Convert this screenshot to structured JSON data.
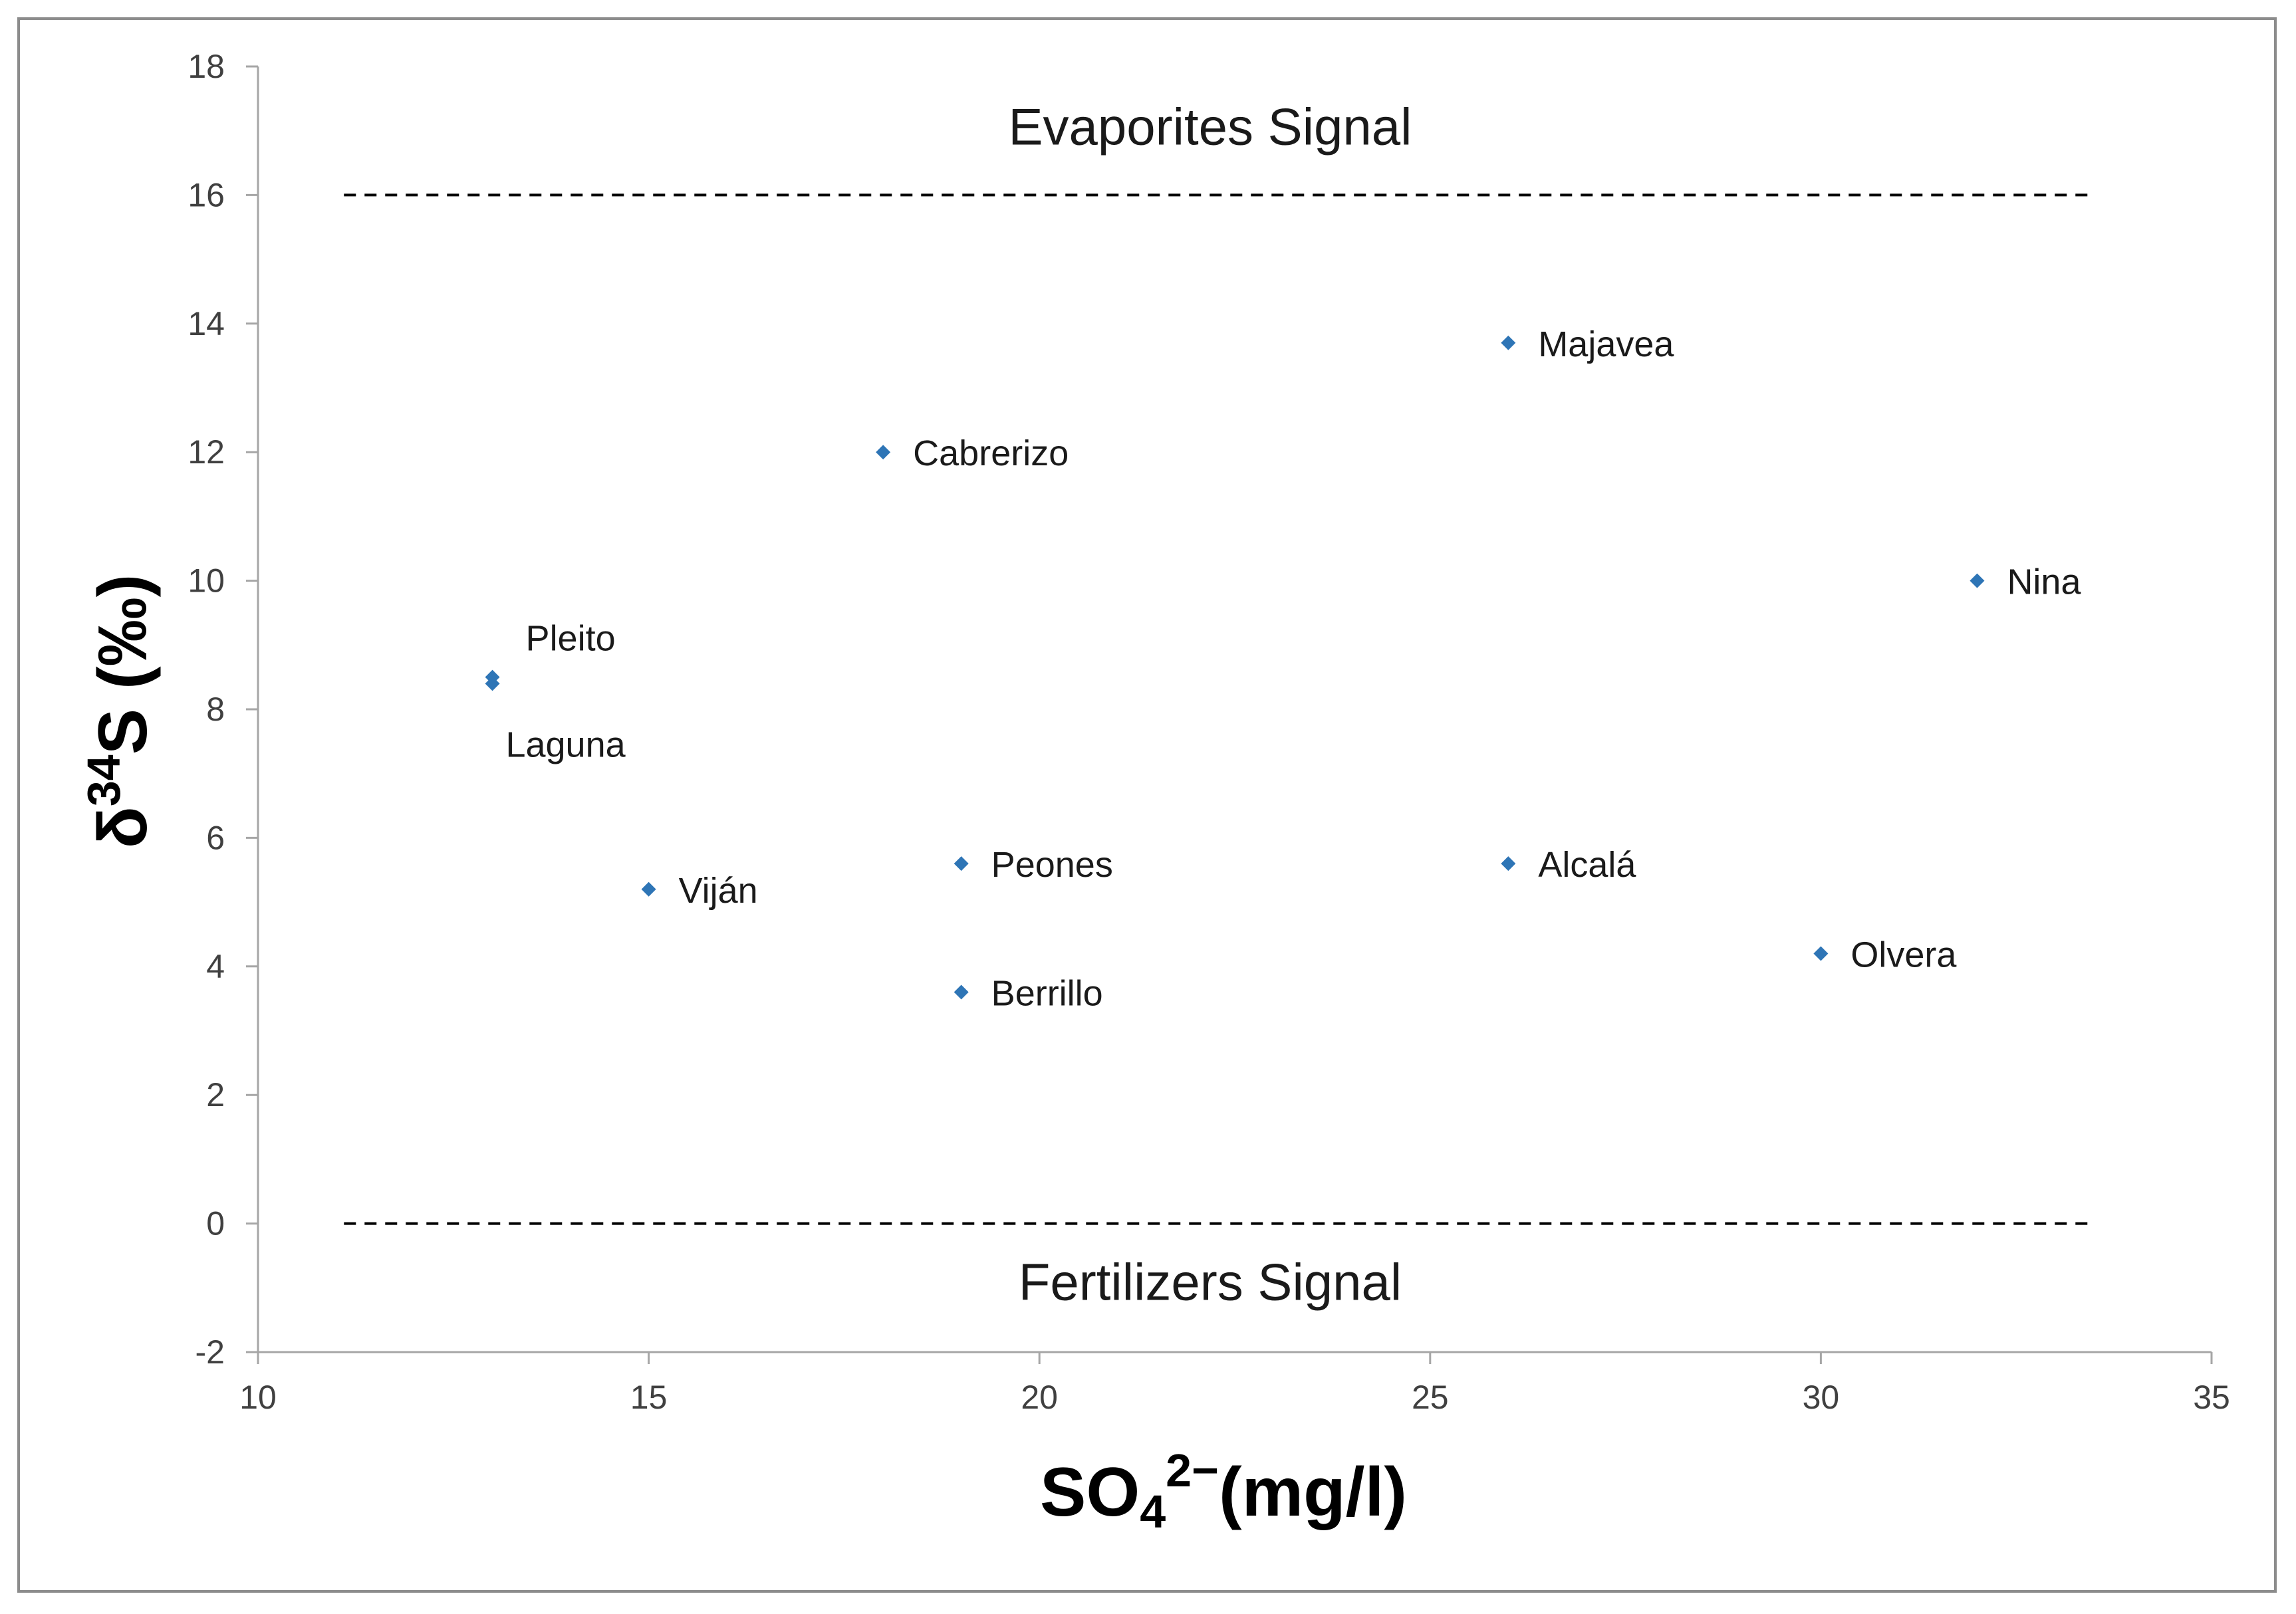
{
  "chart_data": {
    "type": "scatter",
    "xlabel": {
      "main": "SO",
      "sub": "4",
      "sup": "2−",
      "tail": "(mg/l)"
    },
    "ylabel": {
      "delta": "δ",
      "sup": "34",
      "tail": "S (‰)"
    },
    "xlim": [
      10,
      35
    ],
    "ylim": [
      -2,
      18
    ],
    "x_ticks": [
      10,
      15,
      20,
      25,
      30,
      35
    ],
    "y_ticks": [
      -2,
      0,
      2,
      4,
      6,
      8,
      10,
      12,
      14,
      16,
      18
    ],
    "grid": false,
    "marker_color": "#2e75b6",
    "points": [
      {
        "label": "Majavea",
        "x": 26,
        "y": 13.7
      },
      {
        "label": "Cabrerizo",
        "x": 18,
        "y": 12.0
      },
      {
        "label": "Nina",
        "x": 32,
        "y": 10.0
      },
      {
        "label": "Pleito",
        "x": 13,
        "y": 8.5
      },
      {
        "label": "Laguna",
        "x": 13,
        "y": 8.4
      },
      {
        "label": "Peones",
        "x": 19,
        "y": 5.6
      },
      {
        "label": "Alcalá",
        "x": 26,
        "y": 5.6
      },
      {
        "label": "Viján",
        "x": 15,
        "y": 5.2
      },
      {
        "label": "Olvera",
        "x": 30,
        "y": 4.2
      },
      {
        "label": "Berrillo",
        "x": 19,
        "y": 3.6
      }
    ],
    "reference_lines": [
      {
        "y": 16,
        "label": "Evaporites Signal",
        "style": "dashed"
      },
      {
        "y": 0,
        "label": "Fertilizers Signal",
        "style": "dashed"
      }
    ]
  }
}
